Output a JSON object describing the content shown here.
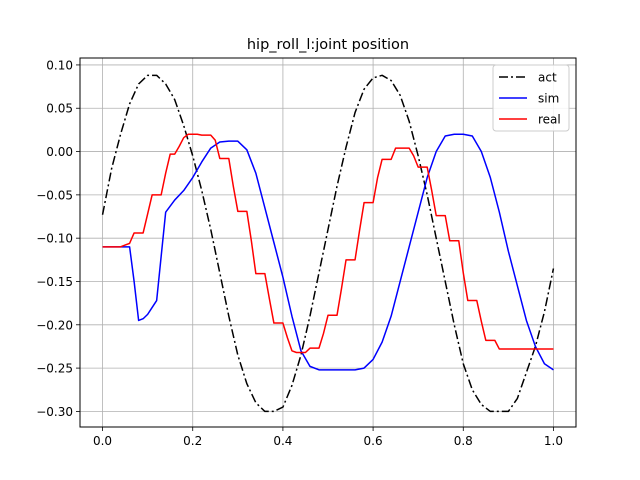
{
  "chart_data": {
    "type": "line",
    "title": "hip_roll_l:joint position",
    "xlabel": "",
    "ylabel": "",
    "xlim": [
      -0.05,
      1.05
    ],
    "ylim": [
      -0.318,
      0.108
    ],
    "xticks": [
      0.0,
      0.2,
      0.4,
      0.6,
      0.8,
      1.0
    ],
    "xtick_labels": [
      "0.0",
      "0.2",
      "0.4",
      "0.6",
      "0.8",
      "1.0"
    ],
    "yticks": [
      -0.3,
      -0.25,
      -0.2,
      -0.15,
      -0.1,
      -0.05,
      0.0,
      0.05,
      0.1
    ],
    "ytick_labels": [
      "−0.30",
      "−0.25",
      "−0.20",
      "−0.15",
      "−0.10",
      "−0.05",
      "0.00",
      "0.05",
      "0.10"
    ],
    "grid": true,
    "legend": "top-right",
    "series": [
      {
        "name": "act",
        "color": "#000000",
        "style": "dashdot",
        "x": [
          0.0,
          0.02,
          0.04,
          0.06,
          0.08,
          0.1,
          0.12,
          0.14,
          0.16,
          0.18,
          0.2,
          0.22,
          0.24,
          0.26,
          0.28,
          0.3,
          0.32,
          0.34,
          0.36,
          0.38,
          0.4,
          0.42,
          0.44,
          0.46,
          0.48,
          0.5,
          0.52,
          0.54,
          0.56,
          0.58,
          0.6,
          0.62,
          0.64,
          0.66,
          0.68,
          0.7,
          0.72,
          0.74,
          0.76,
          0.78,
          0.8,
          0.82,
          0.84,
          0.86,
          0.88,
          0.9,
          0.92,
          0.94,
          0.96,
          0.98,
          1.0
        ],
        "y": [
          -0.073,
          -0.02,
          0.02,
          0.055,
          0.078,
          0.088,
          0.088,
          0.078,
          0.06,
          0.03,
          -0.005,
          -0.045,
          -0.09,
          -0.14,
          -0.19,
          -0.235,
          -0.268,
          -0.29,
          -0.3,
          -0.3,
          -0.295,
          -0.27,
          -0.235,
          -0.19,
          -0.14,
          -0.09,
          -0.04,
          0.005,
          0.045,
          0.072,
          0.085,
          0.088,
          0.082,
          0.065,
          0.035,
          -0.005,
          -0.05,
          -0.1,
          -0.15,
          -0.2,
          -0.245,
          -0.275,
          -0.292,
          -0.3,
          -0.3,
          -0.3,
          -0.285,
          -0.255,
          -0.225,
          -0.185,
          -0.135
        ]
      },
      {
        "name": "sim",
        "color": "#0000ff",
        "style": "solid",
        "x": [
          0.0,
          0.02,
          0.04,
          0.05,
          0.06,
          0.07,
          0.08,
          0.09,
          0.1,
          0.11,
          0.12,
          0.14,
          0.16,
          0.18,
          0.2,
          0.22,
          0.24,
          0.26,
          0.28,
          0.3,
          0.32,
          0.34,
          0.36,
          0.38,
          0.4,
          0.42,
          0.44,
          0.46,
          0.48,
          0.5,
          0.52,
          0.54,
          0.56,
          0.58,
          0.6,
          0.62,
          0.64,
          0.66,
          0.68,
          0.7,
          0.72,
          0.74,
          0.76,
          0.78,
          0.8,
          0.82,
          0.84,
          0.86,
          0.88,
          0.9,
          0.92,
          0.94,
          0.96,
          0.98,
          1.0
        ],
        "y": [
          -0.11,
          -0.11,
          -0.11,
          -0.11,
          -0.11,
          -0.15,
          -0.195,
          -0.193,
          -0.188,
          -0.18,
          -0.172,
          -0.07,
          -0.056,
          -0.045,
          -0.03,
          -0.012,
          0.004,
          0.011,
          0.012,
          0.012,
          0.002,
          -0.025,
          -0.065,
          -0.105,
          -0.145,
          -0.19,
          -0.23,
          -0.248,
          -0.252,
          -0.252,
          -0.252,
          -0.252,
          -0.252,
          -0.25,
          -0.24,
          -0.22,
          -0.19,
          -0.15,
          -0.11,
          -0.07,
          -0.03,
          0.0,
          0.018,
          0.02,
          0.02,
          0.018,
          0.0,
          -0.03,
          -0.07,
          -0.115,
          -0.155,
          -0.195,
          -0.225,
          -0.245,
          -0.252
        ]
      },
      {
        "name": "real",
        "color": "#ff0000",
        "style": "solid",
        "x": [
          0.0,
          0.02,
          0.04,
          0.06,
          0.07,
          0.08,
          0.09,
          0.1,
          0.11,
          0.12,
          0.13,
          0.14,
          0.15,
          0.16,
          0.17,
          0.18,
          0.19,
          0.2,
          0.21,
          0.22,
          0.23,
          0.24,
          0.25,
          0.26,
          0.27,
          0.28,
          0.29,
          0.3,
          0.31,
          0.32,
          0.33,
          0.34,
          0.35,
          0.36,
          0.37,
          0.38,
          0.39,
          0.4,
          0.41,
          0.42,
          0.43,
          0.44,
          0.45,
          0.46,
          0.47,
          0.48,
          0.49,
          0.5,
          0.51,
          0.52,
          0.53,
          0.54,
          0.55,
          0.56,
          0.57,
          0.58,
          0.59,
          0.6,
          0.61,
          0.62,
          0.63,
          0.64,
          0.65,
          0.66,
          0.67,
          0.68,
          0.69,
          0.7,
          0.71,
          0.72,
          0.73,
          0.74,
          0.75,
          0.76,
          0.77,
          0.78,
          0.79,
          0.8,
          0.81,
          0.82,
          0.83,
          0.84,
          0.85,
          0.86,
          0.87,
          0.88,
          0.89,
          0.9,
          0.91,
          0.92,
          0.93,
          0.94,
          0.95,
          0.96,
          0.97,
          0.98,
          0.99,
          1.0
        ],
        "y": [
          -0.11,
          -0.11,
          -0.11,
          -0.106,
          -0.094,
          -0.094,
          -0.094,
          -0.072,
          -0.05,
          -0.05,
          -0.05,
          -0.025,
          -0.003,
          -0.003,
          0.006,
          0.016,
          0.02,
          0.02,
          0.02,
          0.019,
          0.019,
          0.019,
          0.013,
          -0.008,
          -0.008,
          -0.008,
          -0.04,
          -0.069,
          -0.069,
          -0.069,
          -0.103,
          -0.141,
          -0.141,
          -0.141,
          -0.17,
          -0.198,
          -0.198,
          -0.198,
          -0.215,
          -0.23,
          -0.232,
          -0.232,
          -0.232,
          -0.227,
          -0.227,
          -0.227,
          -0.21,
          -0.189,
          -0.189,
          -0.189,
          -0.158,
          -0.125,
          -0.125,
          -0.125,
          -0.091,
          -0.059,
          -0.059,
          -0.059,
          -0.03,
          -0.009,
          -0.009,
          -0.009,
          0.004,
          0.004,
          0.004,
          0.004,
          -0.005,
          -0.018,
          -0.018,
          -0.018,
          -0.045,
          -0.074,
          -0.074,
          -0.074,
          -0.103,
          -0.103,
          -0.103,
          -0.14,
          -0.172,
          -0.172,
          -0.172,
          -0.196,
          -0.218,
          -0.218,
          -0.218,
          -0.228,
          -0.228,
          -0.228,
          -0.228,
          -0.228,
          -0.228,
          -0.228,
          -0.228,
          -0.228,
          -0.228,
          -0.228,
          -0.228,
          -0.228
        ]
      }
    ]
  }
}
